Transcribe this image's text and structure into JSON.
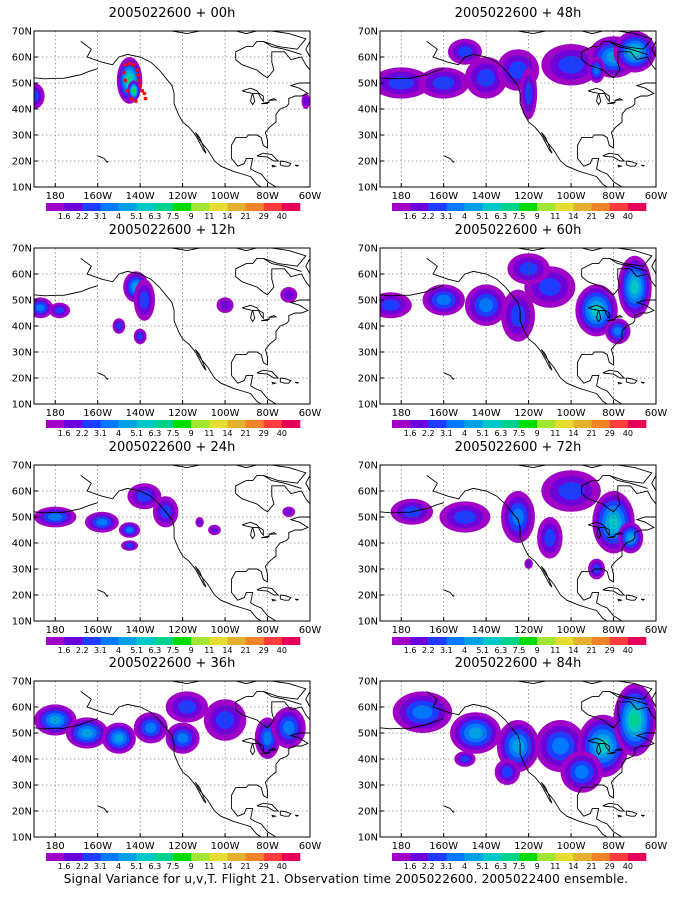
{
  "figure": {
    "caption": "Signal Variance for u,v,T. Flight 21. Observation time 2005022600. 2005022400 ensemble.",
    "colors": {
      "frame": "#000000",
      "grid": "#555555",
      "coast": "#000000",
      "obs_marker": "#ff0000"
    }
  },
  "axes": {
    "lat_ticks": [
      "70N",
      "60N",
      "50N",
      "40N",
      "30N",
      "20N",
      "10N"
    ],
    "lon_ticks": [
      "180",
      "160W",
      "140W",
      "120W",
      "100W",
      "80W",
      "60W"
    ]
  },
  "colorbar": {
    "levels": [
      "1.6",
      "2.2",
      "3.1",
      "4",
      "5.1",
      "6.3",
      "7.5",
      "9",
      "11",
      "14",
      "21",
      "29",
      "40"
    ],
    "colors": [
      "#a000c8",
      "#6e00dc",
      "#1e3cff",
      "#0078ff",
      "#00a0e6",
      "#00c8c8",
      "#00d28c",
      "#00dc00",
      "#a0e632",
      "#e6dc32",
      "#e6af2d",
      "#f08228",
      "#fa3c3c",
      "#e6005a"
    ]
  },
  "panels": [
    {
      "title": "2005022600 + 00h",
      "lead_hours": 0
    },
    {
      "title": "2005022600 + 48h",
      "lead_hours": 48
    },
    {
      "title": "2005022600 + 12h",
      "lead_hours": 12
    },
    {
      "title": "2005022600 + 60h",
      "lead_hours": 60
    },
    {
      "title": "2005022600 + 24h",
      "lead_hours": 24
    },
    {
      "title": "2005022600 + 72h",
      "lead_hours": 72
    },
    {
      "title": "2005022600 + 36h",
      "lead_hours": 36
    },
    {
      "title": "2005022600 + 84h",
      "lead_hours": 84
    }
  ]
}
